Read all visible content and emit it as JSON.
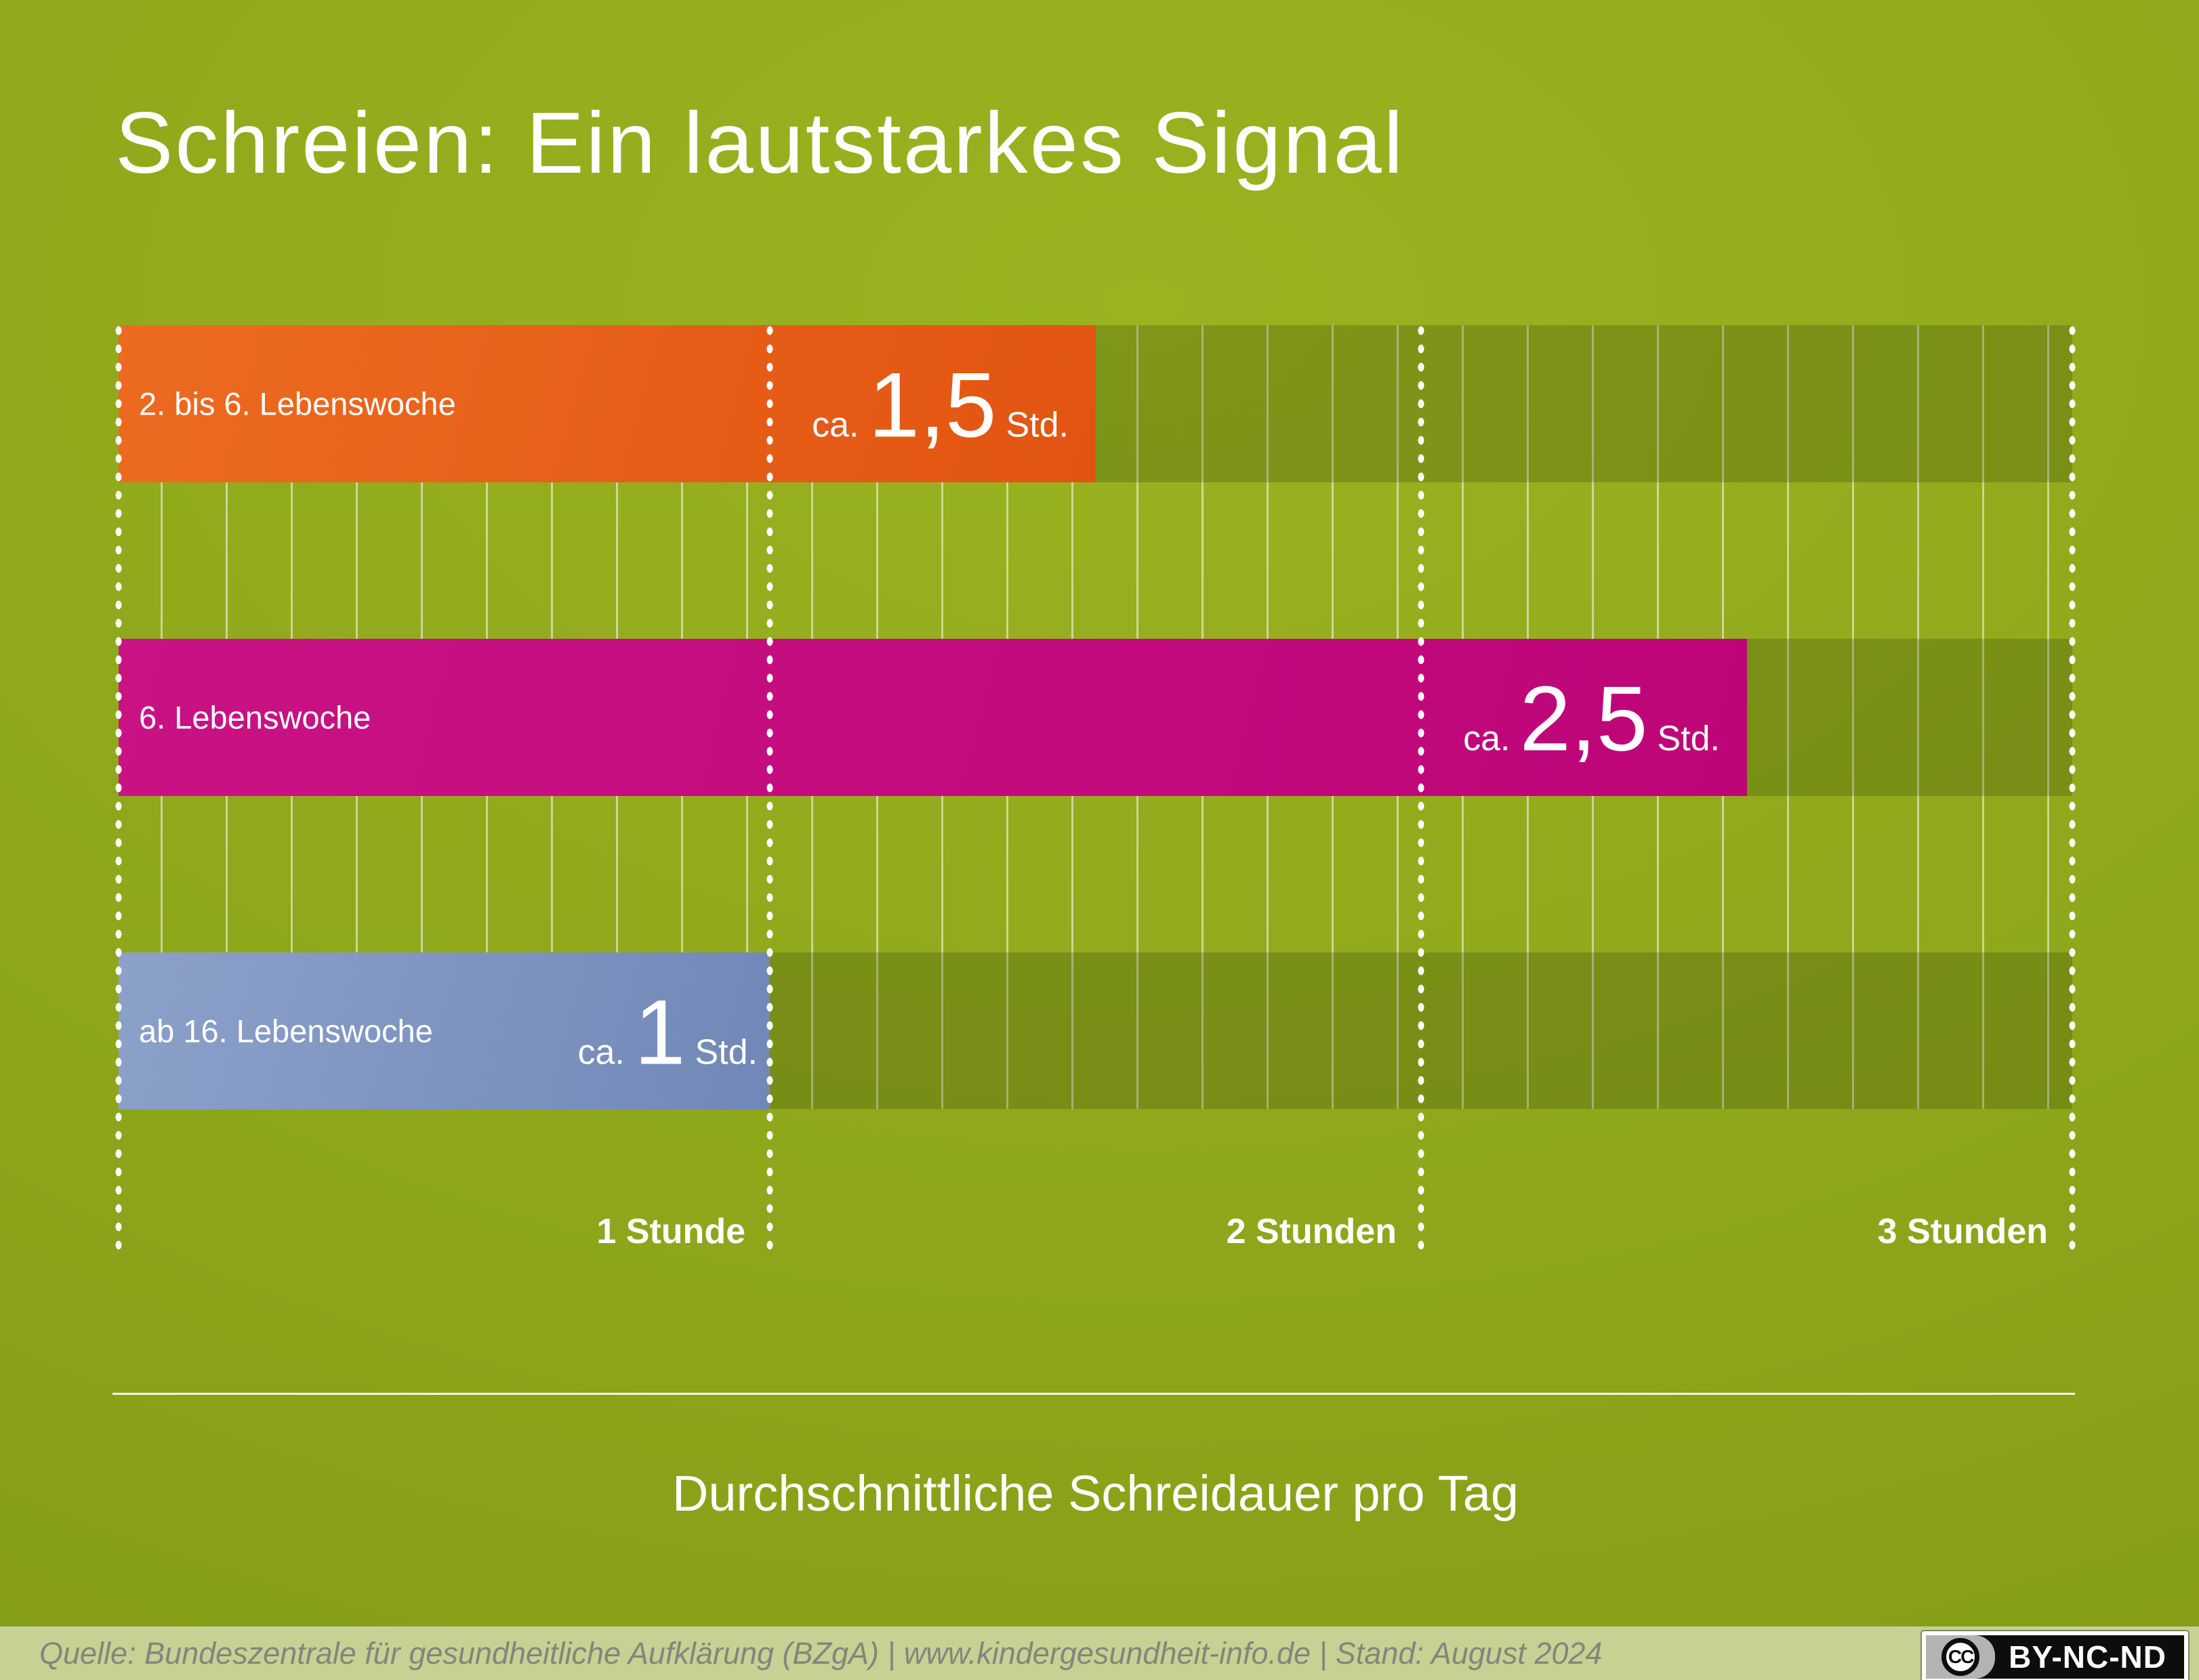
{
  "header": {
    "title": "Schreien: Ein lautstarkes Signal"
  },
  "chart_data": {
    "type": "bar",
    "orientation": "horizontal",
    "title": "Schreien: Ein lautstarkes Signal",
    "xlabel": "Durchschnittliche Schreidauer pro Tag",
    "x_unit": "Stunden",
    "xlim": [
      0,
      3
    ],
    "grid": true,
    "legend": false,
    "categories": [
      "2. bis 6. Lebenswoche",
      "6. Lebenswoche",
      "ab 16. Lebenswoche"
    ],
    "values": [
      1.5,
      2.5,
      1
    ],
    "bars": [
      {
        "label": "2. bis 6. Lebenswoche",
        "value": 1.5,
        "value_prefix": "ca.",
        "value_number": "1,5",
        "value_suffix": "Std.",
        "color": "#e55f15"
      },
      {
        "label": "6. Lebenswoche",
        "value": 2.5,
        "value_prefix": "ca.",
        "value_number": "2,5",
        "value_suffix": "Std.",
        "color": "#c30b7e"
      },
      {
        "label": "ab 16. Lebenswoche",
        "value": 1,
        "value_prefix": "ca.",
        "value_number": "1",
        "value_suffix": "Std.",
        "color": "#7b93c1"
      }
    ],
    "ticks": [
      {
        "value": 1,
        "label": "1 Stunde"
      },
      {
        "value": 2,
        "label": "2 Stunden"
      },
      {
        "value": 3,
        "label": "3 Stunden"
      }
    ]
  },
  "caption": "Durchschnittliche Schreidauer pro Tag",
  "footer": {
    "source": "Quelle: Bundeszentrale für gesundheitliche Aufklärung (BZgA) | www.kindergesundheit-info.de | Stand: August 2024",
    "license": {
      "cc_symbol": "CC",
      "label": "BY-NC-ND"
    }
  },
  "colors": {
    "background": "#8ea71b",
    "bar_orange": "#e55f15",
    "bar_magenta": "#c30b7e",
    "bar_blue": "#7b93c1",
    "band_overlay": "rgba(30,42,0,0.21)",
    "gridline": "rgba(255,255,255,0.52)",
    "footer_background": "#c6d194",
    "footer_text": "#83867b"
  }
}
